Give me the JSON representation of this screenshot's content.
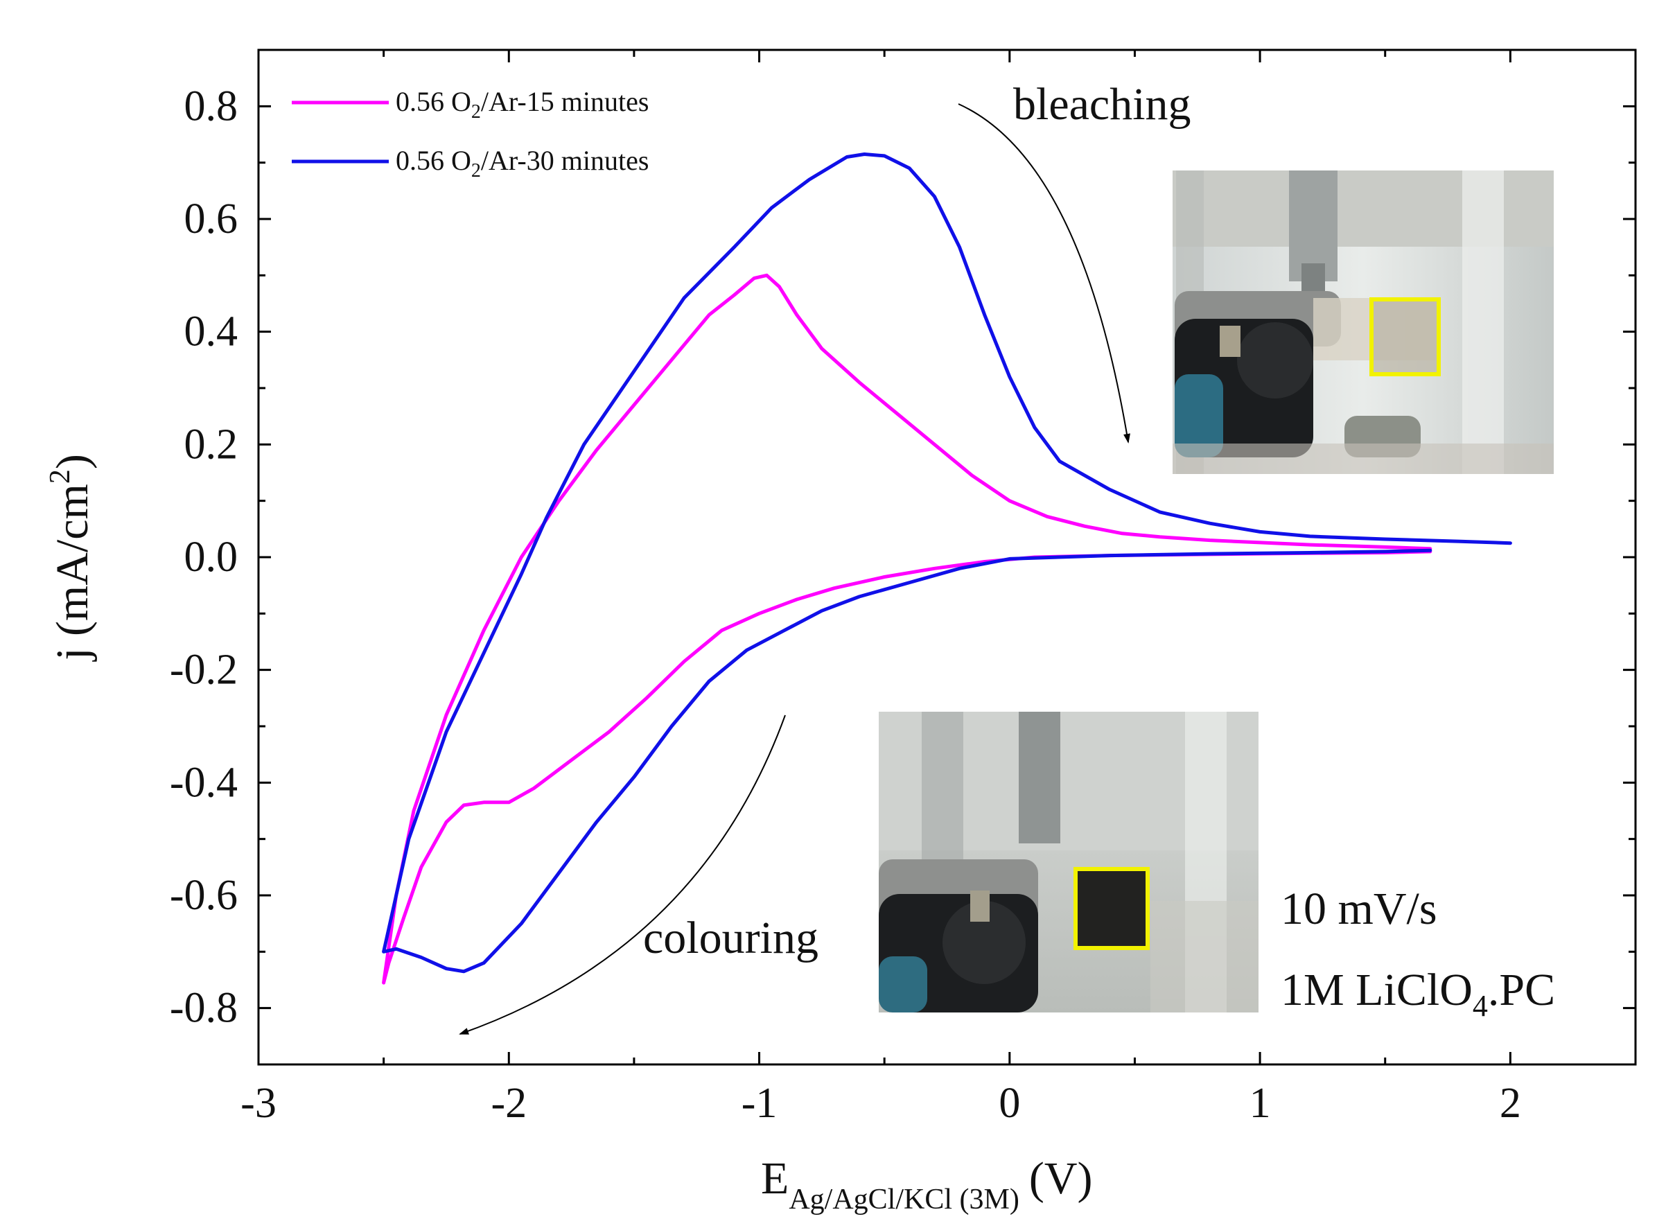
{
  "chart_data": {
    "type": "line",
    "xlabel": {
      "main": "E",
      "sub": "Ag/AgCl/KCl (3M)",
      "unit": "(V)"
    },
    "ylabel": {
      "pre": "j (mA/cm",
      "sup": "2",
      "post": ")"
    },
    "xlim": [
      -3,
      2.5
    ],
    "ylim": [
      -0.9,
      0.9
    ],
    "xticks": [
      {
        "v": -3,
        "label": "-3"
      },
      {
        "v": -2,
        "label": "-2"
      },
      {
        "v": -1,
        "label": "-1"
      },
      {
        "v": 0,
        "label": "0"
      },
      {
        "v": 1,
        "label": "1"
      },
      {
        "v": 2,
        "label": "2"
      }
    ],
    "yticks": [
      {
        "v": 0.8,
        "label": "0.8"
      },
      {
        "v": 0.6,
        "label": "0.6"
      },
      {
        "v": 0.4,
        "label": "0.4"
      },
      {
        "v": 0.2,
        "label": "0.2"
      },
      {
        "v": 0.0,
        "label": "0.0"
      },
      {
        "v": -0.2,
        "label": "-0.2"
      },
      {
        "v": -0.4,
        "label": "-0.4"
      },
      {
        "v": -0.6,
        "label": "-0.6"
      },
      {
        "v": -0.8,
        "label": "-0.8"
      }
    ],
    "legend_position": "top-left",
    "series": [
      {
        "name": "0.56 O2/Ar-15 minutes",
        "legend": {
          "pre": "0.56 O",
          "sub": "2",
          "post": "/Ar-15 minutes"
        },
        "color": "#ff00ff",
        "points": [
          [
            1.68,
            0.015
          ],
          [
            1.5,
            0.018
          ],
          [
            1.2,
            0.022
          ],
          [
            1.0,
            0.026
          ],
          [
            0.8,
            0.03
          ],
          [
            0.6,
            0.036
          ],
          [
            0.45,
            0.042
          ],
          [
            0.3,
            0.055
          ],
          [
            0.15,
            0.072
          ],
          [
            0.0,
            0.1
          ],
          [
            -0.15,
            0.145
          ],
          [
            -0.3,
            0.2
          ],
          [
            -0.45,
            0.255
          ],
          [
            -0.6,
            0.31
          ],
          [
            -0.75,
            0.37
          ],
          [
            -0.85,
            0.43
          ],
          [
            -0.92,
            0.48
          ],
          [
            -0.97,
            0.5
          ],
          [
            -1.02,
            0.495
          ],
          [
            -1.1,
            0.465
          ],
          [
            -1.2,
            0.43
          ],
          [
            -1.35,
            0.35
          ],
          [
            -1.5,
            0.27
          ],
          [
            -1.65,
            0.19
          ],
          [
            -1.8,
            0.1
          ],
          [
            -1.95,
            0.0
          ],
          [
            -2.1,
            -0.13
          ],
          [
            -2.25,
            -0.28
          ],
          [
            -2.38,
            -0.45
          ],
          [
            -2.45,
            -0.6
          ],
          [
            -2.5,
            -0.755
          ],
          [
            -2.48,
            -0.72
          ],
          [
            -2.42,
            -0.64
          ],
          [
            -2.35,
            -0.55
          ],
          [
            -2.25,
            -0.47
          ],
          [
            -2.18,
            -0.44
          ],
          [
            -2.1,
            -0.435
          ],
          [
            -2.0,
            -0.435
          ],
          [
            -1.9,
            -0.41
          ],
          [
            -1.75,
            -0.36
          ],
          [
            -1.6,
            -0.31
          ],
          [
            -1.45,
            -0.25
          ],
          [
            -1.3,
            -0.185
          ],
          [
            -1.15,
            -0.13
          ],
          [
            -1.0,
            -0.1
          ],
          [
            -0.85,
            -0.075
          ],
          [
            -0.7,
            -0.055
          ],
          [
            -0.5,
            -0.035
          ],
          [
            -0.3,
            -0.02
          ],
          [
            -0.1,
            -0.008
          ],
          [
            0.1,
            0.0
          ],
          [
            0.4,
            0.003
          ],
          [
            0.8,
            0.005
          ],
          [
            1.2,
            0.007
          ],
          [
            1.5,
            0.008
          ],
          [
            1.68,
            0.01
          ]
        ]
      },
      {
        "name": "0.56 O2/Ar-30 minutes",
        "legend": {
          "pre": "0.56 O",
          "sub": "2",
          "post": "/Ar-30 minutes"
        },
        "color": "#1010e8",
        "points": [
          [
            2.0,
            0.025
          ],
          [
            1.8,
            0.028
          ],
          [
            1.5,
            0.032
          ],
          [
            1.2,
            0.037
          ],
          [
            1.0,
            0.045
          ],
          [
            0.8,
            0.06
          ],
          [
            0.6,
            0.08
          ],
          [
            0.4,
            0.12
          ],
          [
            0.2,
            0.17
          ],
          [
            0.1,
            0.23
          ],
          [
            0.0,
            0.32
          ],
          [
            -0.1,
            0.43
          ],
          [
            -0.2,
            0.55
          ],
          [
            -0.3,
            0.64
          ],
          [
            -0.4,
            0.69
          ],
          [
            -0.5,
            0.712
          ],
          [
            -0.58,
            0.715
          ],
          [
            -0.65,
            0.71
          ],
          [
            -0.8,
            0.67
          ],
          [
            -0.95,
            0.62
          ],
          [
            -1.1,
            0.55
          ],
          [
            -1.3,
            0.46
          ],
          [
            -1.5,
            0.33
          ],
          [
            -1.7,
            0.2
          ],
          [
            -1.85,
            0.07
          ],
          [
            -1.95,
            -0.03
          ],
          [
            -2.1,
            -0.17
          ],
          [
            -2.25,
            -0.31
          ],
          [
            -2.4,
            -0.5
          ],
          [
            -2.5,
            -0.7
          ],
          [
            -2.45,
            -0.695
          ],
          [
            -2.35,
            -0.71
          ],
          [
            -2.25,
            -0.73
          ],
          [
            -2.18,
            -0.735
          ],
          [
            -2.1,
            -0.72
          ],
          [
            -1.95,
            -0.65
          ],
          [
            -1.8,
            -0.56
          ],
          [
            -1.65,
            -0.47
          ],
          [
            -1.5,
            -0.39
          ],
          [
            -1.35,
            -0.3
          ],
          [
            -1.2,
            -0.22
          ],
          [
            -1.05,
            -0.165
          ],
          [
            -0.9,
            -0.13
          ],
          [
            -0.75,
            -0.095
          ],
          [
            -0.6,
            -0.07
          ],
          [
            -0.4,
            -0.045
          ],
          [
            -0.2,
            -0.02
          ],
          [
            0.0,
            -0.003
          ],
          [
            0.4,
            0.003
          ],
          [
            0.8,
            0.006
          ],
          [
            1.2,
            0.008
          ],
          [
            1.5,
            0.01
          ],
          [
            1.68,
            0.012
          ]
        ]
      }
    ],
    "annotations": {
      "bleaching": "bleaching",
      "colouring": "colouring",
      "scan_rate": "10 mV/s",
      "electrolyte": {
        "pre": "1M LiClO",
        "sub": "4",
        "post": ".PC"
      }
    },
    "insets": [
      {
        "name": "bleached-electrode-photo",
        "state": "transparent film in cell"
      },
      {
        "name": "coloured-electrode-photo",
        "state": "dark film in cell"
      }
    ],
    "colors": {
      "highlight_box": "#f2f200",
      "arrow": "#000000"
    }
  }
}
